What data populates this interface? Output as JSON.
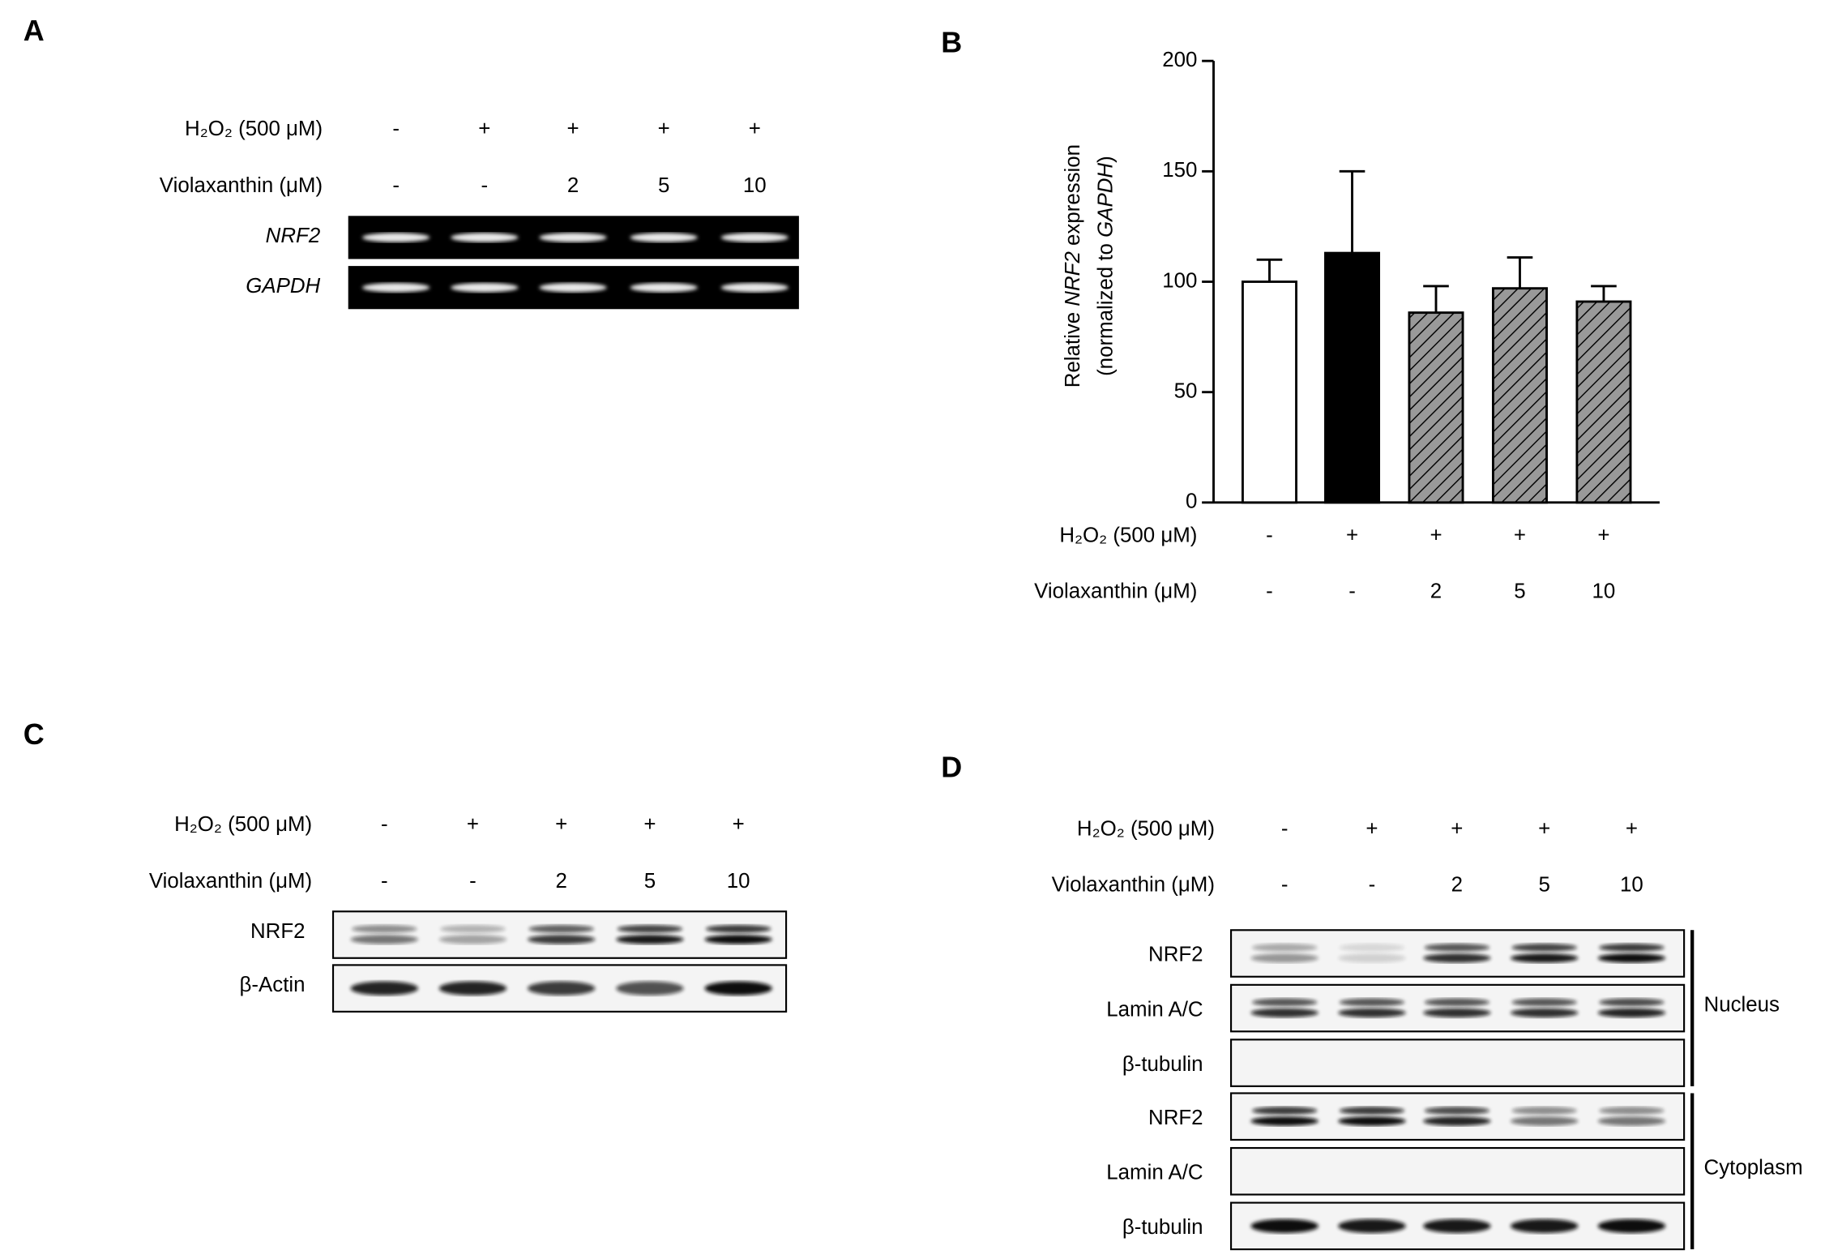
{
  "panel_a": {
    "label": "A",
    "conditions": [
      {
        "name": "H₂O₂ (500 μM)",
        "cells": [
          "-",
          "+",
          "+",
          "+",
          "+"
        ]
      },
      {
        "name": "Violaxanthin (μM)",
        "cells": [
          "-",
          "-",
          "2",
          "5",
          "10"
        ]
      }
    ],
    "gels": [
      "NRF2",
      "GAPDH"
    ]
  },
  "chart_data": {
    "type": "bar",
    "label": "B",
    "y_label": [
      [
        "Relative ",
        "NRF2",
        " expression"
      ],
      [
        "(normalized to ",
        "GAPDH",
        ")"
      ]
    ],
    "values": [
      100,
      113,
      86,
      97,
      91
    ],
    "errors": [
      10,
      37,
      12,
      14,
      7
    ],
    "fills": [
      "white",
      "black",
      "hatched",
      "hatched",
      "hatched"
    ],
    "ylim": [
      0,
      200
    ],
    "yticks": [
      0,
      50,
      100,
      150,
      200
    ],
    "conditions": [
      {
        "name": "H₂O₂ (500 μM)",
        "cells": [
          "-",
          "+",
          "+",
          "+",
          "+"
        ]
      },
      {
        "name": "Violaxanthin (μM)",
        "cells": [
          "-",
          "-",
          "2",
          "5",
          "10"
        ]
      }
    ]
  },
  "panel_c": {
    "label": "C",
    "conditions": [
      {
        "name": "H₂O₂ (500 μM)",
        "cells": [
          "-",
          "+",
          "+",
          "+",
          "+"
        ]
      },
      {
        "name": "Violaxanthin (μM)",
        "cells": [
          "-",
          "-",
          "2",
          "5",
          "10"
        ]
      }
    ],
    "blots": [
      "NRF2",
      "β-Actin"
    ]
  },
  "panel_d": {
    "label": "D",
    "conditions": [
      {
        "name": "H₂O₂ (500 μM)",
        "cells": [
          "-",
          "+",
          "+",
          "+",
          "+"
        ]
      },
      {
        "name": "Violaxanthin (μM)",
        "cells": [
          "-",
          "-",
          "2",
          "5",
          "10"
        ]
      }
    ],
    "fractions": [
      {
        "name": "Nucleus",
        "blots": [
          "NRF2",
          "Lamin A/C",
          "β-tubulin"
        ]
      },
      {
        "name": "Cytoplasm",
        "blots": [
          "NRF2",
          "Lamin A/C",
          "β-tubulin"
        ]
      }
    ]
  }
}
